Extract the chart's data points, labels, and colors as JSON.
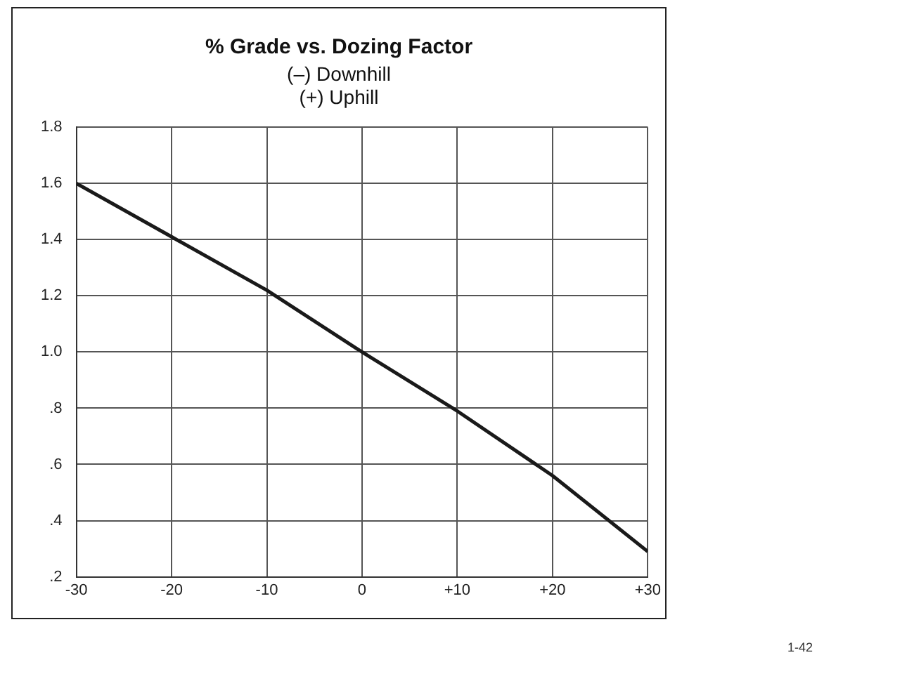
{
  "chart_data": {
    "type": "line",
    "title": "% Grade vs. Dozing Factor",
    "subtitle": "(–) Downhill\n(+) Uphill",
    "x": [
      -30,
      -20,
      -10,
      0,
      10,
      20,
      30
    ],
    "series": [
      {
        "color": "#1a1a1a",
        "values": [
          1.6,
          1.41,
          1.22,
          1.0,
          0.79,
          0.56,
          0.29
        ]
      }
    ],
    "xlim": [
      -30,
      30
    ],
    "xticks": [
      -30,
      -20,
      -10,
      0,
      {
        "value": 10,
        "label": "+10"
      },
      {
        "value": 20,
        "label": "+20"
      },
      {
        "value": 30,
        "label": "+30"
      }
    ],
    "ylim": [
      0.2,
      1.8
    ],
    "yticks": [
      {
        "value": 0.2,
        "label": ".2"
      },
      {
        "value": 0.4,
        "label": ".4"
      },
      {
        "value": 0.6,
        "label": ".6"
      },
      {
        "value": 0.8,
        "label": ".8"
      },
      {
        "value": 1.0,
        "label": "1.0"
      },
      1.2,
      1.4,
      1.6,
      1.8
    ],
    "grid": true,
    "legend": false,
    "marker": "none",
    "line_style": "solid",
    "annotations": [
      "1-42"
    ]
  }
}
